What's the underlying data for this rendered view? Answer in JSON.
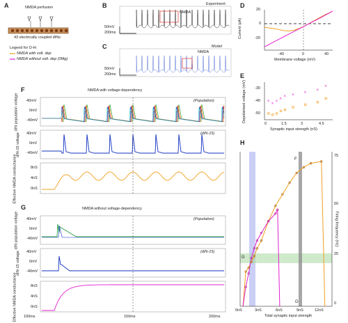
{
  "panel_letters": {
    "a": "A",
    "b": "B",
    "c": "C",
    "d": "D",
    "e": "E",
    "f": "F",
    "g": "G",
    "h": "H"
  },
  "panel_a": {
    "title": "NMDA perfusion",
    "subtitle": "43 electrically coupled dINs",
    "legend_title": "Legend for D-H:",
    "legend_items": [
      {
        "label": "NMDA with volt. dep",
        "color": "#f0a020"
      },
      {
        "label": "NMDA without volt. dep (0Mg)",
        "color": "#e020d0"
      }
    ]
  },
  "panel_b": {
    "label": "Experiment",
    "trace_label": "NMDA",
    "scale_v": "50mV",
    "scale_t": "200ms"
  },
  "panel_c": {
    "label": "Model",
    "trace_label": "NMDA",
    "scale_v": "50mV",
    "scale_t": "200ms"
  },
  "panel_d": {
    "ylabel": "Current (pA)",
    "xlabel": "Membrane voltage (mV)",
    "yticks": [
      "20",
      "0",
      "-20"
    ],
    "xticks": [
      "-40",
      "0",
      "40"
    ],
    "chart_data": {
      "type": "line",
      "series": [
        {
          "color": "#f0a020",
          "x": [
            -80,
            -60,
            -40,
            -30,
            -20,
            -10,
            0,
            20,
            40,
            60
          ],
          "y": [
            -1,
            -3,
            -6,
            -6.5,
            -5.5,
            -3,
            0,
            8,
            16,
            23
          ]
        },
        {
          "color": "#e020d0",
          "x": [
            -80,
            -40,
            0,
            40,
            60
          ],
          "y": [
            -30,
            -15,
            0,
            15,
            23
          ]
        }
      ],
      "xlim": [
        -80,
        60
      ],
      "ylim": [
        -35,
        25
      ]
    }
  },
  "panel_e": {
    "ylabel": "Depolarised voltage (mV)",
    "xlabel": "Synaptic input strength (nS)",
    "yticks": [
      "-30",
      "-40",
      "-50"
    ],
    "xticks": [
      "0",
      "1.5",
      "3",
      "4.5"
    ],
    "chart_data": {
      "type": "scatter",
      "series": [
        {
          "color": "#e020d0",
          "x": [
            0.3,
            0.6,
            0.9,
            1.2,
            1.5,
            2.1,
            3,
            3.9,
            4.5
          ],
          "y": [
            -40,
            -42,
            -40,
            -38,
            -36,
            -35,
            -33,
            -31,
            -28
          ]
        },
        {
          "color": "#f0a020",
          "x": [
            0.3,
            0.6,
            0.9,
            1.2,
            1.5,
            2.1,
            3,
            3.9,
            4.5
          ],
          "y": [
            -50,
            -51,
            -50,
            -48,
            -47,
            -45,
            -43,
            -41,
            -38
          ]
        }
      ],
      "xlim": [
        0,
        5
      ],
      "ylim": [
        -55,
        -25
      ]
    }
  },
  "panel_f": {
    "title": "NMDA with voltage-dependency",
    "rows": [
      {
        "ylabel": "dIN population voltage",
        "tag": "(Population)",
        "ticks": [
          "40mV",
          "0mV",
          "-40mV"
        ]
      },
      {
        "ylabel": "dIN-15 voltage",
        "tag": "(dIN-15)",
        "ticks": [
          "40mV",
          "0mV",
          "-40mV"
        ]
      },
      {
        "ylabel": "Effective NMDA conductance",
        "tag": "",
        "ticks": [
          "8nS",
          "4nS",
          "0nS"
        ]
      }
    ]
  },
  "panel_g": {
    "title": "NMDA without voltage-dependency",
    "rows": [
      {
        "ylabel": "dIN population voltage",
        "tag": "(Population)",
        "ticks": [
          "40mV",
          "0mV",
          "-40mV"
        ]
      },
      {
        "ylabel": "dIN-15 voltage",
        "tag": "(dIN-15)",
        "ticks": [
          "40mV",
          "0mV",
          "-40mV"
        ]
      },
      {
        "ylabel": "Effective NMDA conductance",
        "tag": "",
        "ticks": [
          "8nS",
          "4nS",
          "0nS"
        ]
      }
    ],
    "time_ticks": [
      "100ms",
      "150ms",
      "200ms"
    ]
  },
  "panel_h": {
    "ylabel": "Firing frequency (Hz)",
    "xlabel": "Total synaptic input strength",
    "xticks": [
      "0nS",
      "3nS",
      "6nS",
      "9nS",
      "12nS"
    ],
    "yticks": [
      "75",
      "50",
      "25",
      "0"
    ],
    "markers": {
      "F": "F",
      "G_left": "G",
      "G_bottom": "G"
    },
    "chart_data": {
      "type": "line",
      "series": [
        {
          "color": "#f0a020",
          "x": [
            0.4,
            0.8,
            1.2,
            1.6,
            2,
            2.4,
            3,
            4,
            5,
            6,
            7,
            8,
            9,
            10,
            11.5,
            12
          ],
          "y": [
            0,
            18,
            20,
            23,
            26,
            30,
            34,
            44,
            52,
            58,
            64,
            69,
            72,
            74,
            75,
            0
          ]
        },
        {
          "color": "#e020d0",
          "x": [
            0.4,
            0.8,
            1.2,
            1.6,
            2,
            2.4,
            3,
            4,
            5,
            5.3,
            5.6
          ],
          "y": [
            0,
            10,
            17,
            25,
            30,
            34,
            38,
            44,
            48,
            50,
            0
          ]
        }
      ],
      "xlim": [
        0,
        13
      ],
      "ylim": [
        0,
        80
      ]
    }
  }
}
